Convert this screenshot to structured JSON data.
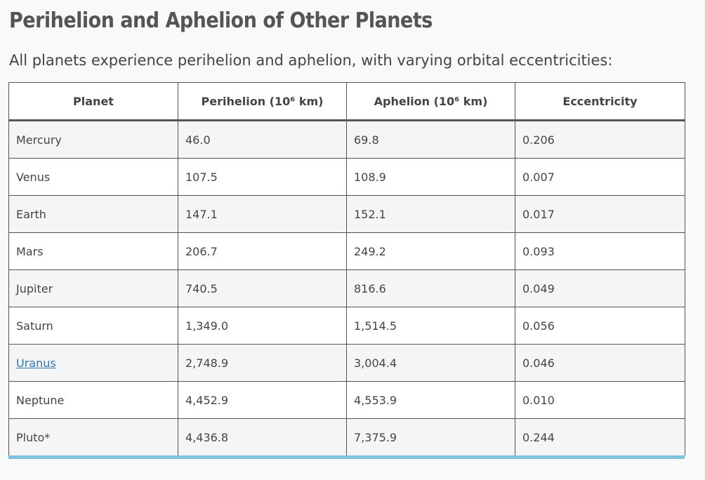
{
  "heading": {
    "title": "Perihelion and Aphelion of Other Planets",
    "intro": "All planets experience perihelion and aphelion, with varying orbital eccentricities:"
  },
  "table": {
    "headers": {
      "planet": "Planet",
      "perihelion": "Perihelion (10⁶ km)",
      "aphelion": "Aphelion (10⁶ km)",
      "eccentricity": "Eccentricity"
    },
    "rows": [
      {
        "planet": "Mercury",
        "perihelion": "46.0",
        "aphelion": "69.8",
        "eccentricity": "0.206"
      },
      {
        "planet": "Venus",
        "perihelion": "107.5",
        "aphelion": "108.9",
        "eccentricity": "0.007"
      },
      {
        "planet": "Earth",
        "perihelion": "147.1",
        "aphelion": "152.1",
        "eccentricity": "0.017"
      },
      {
        "planet": "Mars",
        "perihelion": "206.7",
        "aphelion": "249.2",
        "eccentricity": "0.093"
      },
      {
        "planet": "Jupiter",
        "perihelion": "740.5",
        "aphelion": "816.6",
        "eccentricity": "0.049"
      },
      {
        "planet": "Saturn",
        "perihelion": "1,349.0",
        "aphelion": "1,514.5",
        "eccentricity": "0.056"
      },
      {
        "planet": "Uranus",
        "perihelion": "2,748.9",
        "aphelion": "3,004.4",
        "eccentricity": "0.046"
      },
      {
        "planet": "Neptune",
        "perihelion": "4,452.9",
        "aphelion": "4,553.9",
        "eccentricity": "0.010"
      },
      {
        "planet": "Pluto*",
        "perihelion": "4,436.8",
        "aphelion": "7,375.9",
        "eccentricity": "0.244"
      }
    ]
  },
  "colors": {
    "link": "#2a7ab9",
    "accent_bar": "#7ec1dd",
    "border": "#555555"
  }
}
